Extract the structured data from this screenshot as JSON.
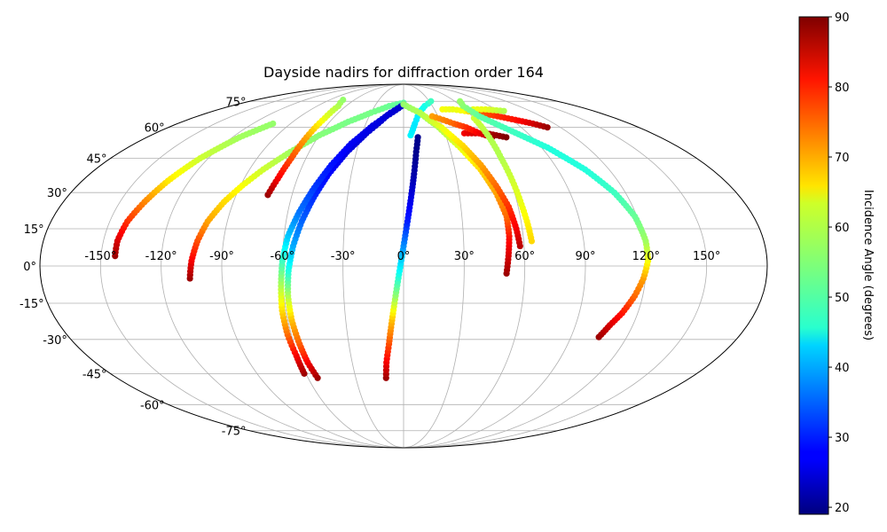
{
  "chart_data": {
    "type": "scatter",
    "projection": "mollweide",
    "title": "Dayside nadirs for diffraction order 164",
    "xlabel": "",
    "ylabel": "",
    "lon_ticks": [
      "-150°",
      "-120°",
      "-90°",
      "-60°",
      "-30°",
      "0°",
      "30°",
      "60°",
      "90°",
      "120°",
      "150°"
    ],
    "lon_tick_values": [
      -150,
      -120,
      -90,
      -60,
      -30,
      0,
      30,
      60,
      90,
      120,
      150
    ],
    "lat_ticks": [
      "-75°",
      "-60°",
      "-45°",
      "-30°",
      "-15°",
      "0°",
      "15°",
      "30°",
      "45°",
      "60°",
      "75°"
    ],
    "lat_tick_values": [
      -75,
      -60,
      -45,
      -30,
      -15,
      0,
      15,
      30,
      45,
      60,
      75
    ],
    "grid": true,
    "colorbar": {
      "label": "Incidence Angle (degrees)",
      "cmap": "jet",
      "vmin": 19,
      "vmax": 90,
      "ticks": [
        "20",
        "30",
        "40",
        "50",
        "60",
        "70",
        "80",
        "90"
      ],
      "tick_values": [
        20,
        30,
        40,
        50,
        60,
        70,
        80,
        90
      ]
    },
    "series": [
      {
        "points": [
          [
            -143,
            4,
            88
          ],
          [
            -143,
            10,
            84
          ],
          [
            -141,
            18,
            78
          ],
          [
            -137,
            26,
            72
          ],
          [
            -132,
            35,
            65
          ],
          [
            -125,
            45,
            60
          ],
          [
            -115,
            55,
            57
          ],
          [
            -104,
            62,
            56
          ]
        ]
      },
      {
        "points": [
          [
            -106,
            -5,
            88
          ],
          [
            -105,
            2,
            82
          ],
          [
            -103,
            10,
            76
          ],
          [
            -100,
            18,
            70
          ],
          [
            -95,
            26,
            66
          ],
          [
            -89,
            33,
            63
          ],
          [
            -82,
            40,
            60
          ],
          [
            -72,
            48,
            57
          ],
          [
            -60,
            56,
            55
          ],
          [
            -45,
            63,
            54
          ],
          [
            -30,
            68,
            54
          ],
          [
            -15,
            72,
            53
          ],
          [
            0,
            74,
            52
          ]
        ]
      },
      {
        "points": [
          [
            -73,
            29,
            88
          ],
          [
            -71,
            36,
            82
          ],
          [
            -69,
            45,
            76
          ],
          [
            -68,
            55,
            70
          ],
          [
            -67,
            65,
            62
          ],
          [
            -68,
            72,
            58
          ],
          [
            -74,
            76,
            56
          ]
        ]
      },
      {
        "points": [
          [
            -54,
            -47,
            88
          ],
          [
            -56,
            -40,
            82
          ],
          [
            -57,
            -32,
            75
          ],
          [
            -58,
            -22,
            68
          ],
          [
            -58,
            -12,
            58
          ],
          [
            -57,
            -2,
            48
          ],
          [
            -55,
            8,
            40
          ],
          [
            -52,
            18,
            35
          ],
          [
            -48,
            28,
            31
          ],
          [
            -43,
            38,
            28
          ],
          [
            -36,
            48,
            26
          ],
          [
            -27,
            57,
            25
          ],
          [
            -15,
            66,
            24
          ],
          [
            0,
            73,
            24
          ]
        ]
      },
      {
        "points": [
          [
            -61,
            -45,
            88
          ],
          [
            -61,
            -37,
            82
          ],
          [
            -62,
            -28,
            74
          ],
          [
            -62,
            -18,
            66
          ],
          [
            -61,
            -8,
            58
          ],
          [
            -60,
            2,
            50
          ],
          [
            -58,
            12,
            42
          ],
          [
            -54,
            22,
            36
          ],
          [
            -49,
            32,
            32
          ],
          [
            -43,
            42,
            29
          ],
          [
            -35,
            52,
            27
          ],
          [
            -24,
            61,
            26
          ],
          [
            -12,
            68,
            25
          ],
          [
            0,
            73,
            24
          ]
        ]
      },
      {
        "points": [
          [
            -11,
            -47,
            88
          ],
          [
            -10,
            -40,
            82
          ],
          [
            -8,
            -32,
            76
          ],
          [
            -6,
            -22,
            68
          ],
          [
            -4,
            -12,
            56
          ],
          [
            -2,
            -2,
            46
          ],
          [
            0,
            8,
            38
          ],
          [
            2,
            18,
            30
          ],
          [
            4,
            28,
            26
          ],
          [
            6,
            38,
            22
          ],
          [
            8,
            48,
            20
          ],
          [
            10,
            55,
            20
          ]
        ]
      },
      {
        "points": [
          [
            5,
            56,
            45
          ],
          [
            9,
            62,
            44
          ],
          [
            14,
            68,
            45
          ],
          [
            22,
            72,
            47
          ],
          [
            32,
            75,
            50
          ]
        ]
      },
      {
        "points": [
          [
            51,
            -3,
            88
          ],
          [
            52,
            4,
            84
          ],
          [
            53,
            12,
            80
          ],
          [
            53,
            20,
            74
          ],
          [
            50,
            30,
            70
          ],
          [
            45,
            40,
            66
          ],
          [
            37,
            50,
            62
          ],
          [
            27,
            60,
            58
          ],
          [
            15,
            68,
            55
          ],
          [
            0,
            73,
            54
          ]
        ]
      },
      {
        "points": [
          [
            58,
            8,
            86
          ],
          [
            57,
            15,
            82
          ],
          [
            55,
            24,
            78
          ],
          [
            51,
            33,
            74
          ],
          [
            46,
            42,
            70
          ],
          [
            39,
            51,
            66
          ],
          [
            29,
            60,
            62
          ],
          [
            15,
            68,
            58
          ],
          [
            0,
            73,
            56
          ]
        ]
      },
      {
        "points": [
          [
            44,
            57,
            82
          ],
          [
            52,
            57,
            84
          ],
          [
            60,
            57,
            86
          ],
          [
            66,
            56,
            88
          ],
          [
            72,
            55,
            90
          ]
        ]
      },
      {
        "points": [
          [
            25,
            66,
            70
          ],
          [
            33,
            64,
            72
          ],
          [
            40,
            62,
            74
          ],
          [
            48,
            60,
            78
          ],
          [
            55,
            57,
            82
          ],
          [
            62,
            55,
            88
          ]
        ]
      },
      {
        "points": [
          [
            38,
            70,
            63
          ],
          [
            48,
            70,
            62
          ],
          [
            58,
            69,
            63
          ],
          [
            70,
            68,
            74
          ],
          [
            82,
            66,
            78
          ],
          [
            93,
            64,
            80
          ],
          [
            103,
            62,
            84
          ],
          [
            110,
            60,
            88
          ]
        ]
      },
      {
        "points": [
          [
            68,
            70,
            62
          ],
          [
            80,
            70,
            62
          ],
          [
            95,
            69,
            58
          ]
        ]
      },
      {
        "points": [
          [
            60,
            65,
            60
          ],
          [
            60,
            55,
            58
          ],
          [
            60,
            45,
            58
          ],
          [
            61,
            35,
            60
          ],
          [
            62,
            25,
            62
          ],
          [
            63,
            18,
            64
          ],
          [
            64,
            10,
            66
          ]
        ]
      },
      {
        "points": [
          [
            105,
            -29,
            88
          ],
          [
            108,
            -24,
            84
          ],
          [
            112,
            -19,
            80
          ],
          [
            116,
            -12,
            74
          ],
          [
            119,
            -5,
            70
          ],
          [
            121,
            2,
            63
          ],
          [
            121,
            10,
            57
          ],
          [
            119,
            20,
            53
          ],
          [
            114,
            30,
            50
          ],
          [
            106,
            40,
            48
          ],
          [
            94,
            50,
            48
          ],
          [
            80,
            58,
            50
          ],
          [
            66,
            66,
            52
          ],
          [
            62,
            72,
            55
          ],
          [
            66,
            75,
            56
          ]
        ]
      }
    ]
  }
}
